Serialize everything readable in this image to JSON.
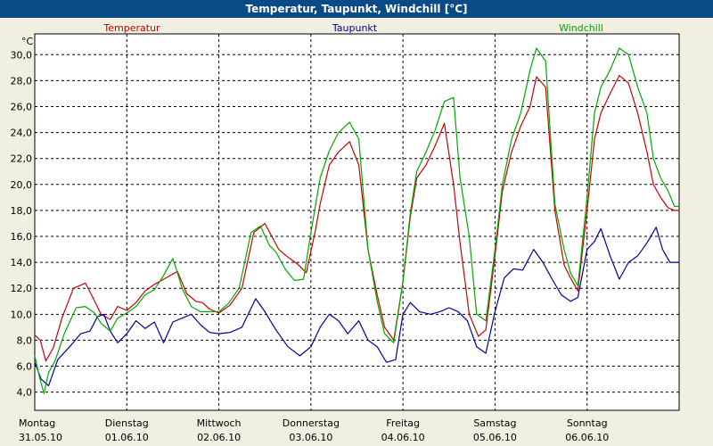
{
  "window": {
    "title": "Temperatur, Taupunkt, Windchill [°C]"
  },
  "chart_data": {
    "type": "line",
    "title": "Temperatur, Taupunkt, Windchill [°C]",
    "ylabel": "°C",
    "xlabel": "",
    "ylim": [
      2.6,
      31.6
    ],
    "y_ticks": [
      "4,0",
      "6,0",
      "8,0",
      "10,0",
      "12,0",
      "14,0",
      "16,0",
      "18,0",
      "20,0",
      "22,0",
      "24,0",
      "26,0",
      "28,0",
      "30,0"
    ],
    "y_tick_values": [
      4,
      6,
      8,
      10,
      12,
      14,
      16,
      18,
      20,
      22,
      24,
      26,
      28,
      30
    ],
    "grid": true,
    "legend": [
      "Temperatur",
      "Taupunkt",
      "Windchill"
    ],
    "categories": [
      {
        "day": "Montag",
        "date": "31.05.10"
      },
      {
        "day": "Dienstag",
        "date": "01.06.10"
      },
      {
        "day": "Mittwoch",
        "date": "02.06.10"
      },
      {
        "day": "Donnerstag",
        "date": "03.06.10"
      },
      {
        "day": "Freitag",
        "date": "04.06.10"
      },
      {
        "day": "Samstag",
        "date": "05.06.10"
      },
      {
        "day": "Sonntag",
        "date": "06.06.10"
      }
    ],
    "x_unit": "days since 31.05.10 00:00",
    "xlim": [
      0,
      7
    ],
    "series": [
      {
        "name": "Temperatur",
        "color": "#cc0000",
        "x": [
          0,
          0.06,
          0.12,
          0.2,
          0.3,
          0.42,
          0.55,
          0.63,
          0.72,
          0.82,
          0.9,
          1.0,
          1.1,
          1.2,
          1.3,
          1.4,
          1.55,
          1.65,
          1.75,
          1.82,
          1.9,
          2.0,
          2.12,
          2.25,
          2.38,
          2.5,
          2.65,
          2.75,
          2.85,
          2.95,
          3.05,
          3.1,
          3.2,
          3.3,
          3.42,
          3.52,
          3.62,
          3.72,
          3.8,
          3.9,
          4.0,
          4.08,
          4.15,
          4.25,
          4.35,
          4.45,
          4.55,
          4.62,
          4.72,
          4.82,
          4.9,
          5.0,
          5.08,
          5.18,
          5.28,
          5.38,
          5.45,
          5.55,
          5.65,
          5.75,
          5.82,
          5.9,
          6.0,
          6.08,
          6.15,
          6.25,
          6.35,
          6.45,
          6.55,
          6.65,
          6.72,
          6.8,
          6.88,
          6.95,
          7.0
        ],
        "values": [
          8.4,
          8.0,
          6.4,
          7.4,
          9.8,
          12.0,
          12.4,
          11.3,
          10.0,
          9.6,
          10.6,
          10.3,
          10.9,
          11.8,
          12.3,
          12.7,
          13.3,
          11.6,
          11.0,
          10.9,
          10.4,
          10.1,
          10.7,
          12.0,
          16.3,
          17.0,
          15.0,
          14.4,
          13.9,
          13.2,
          16.5,
          18.5,
          21.5,
          22.5,
          23.3,
          21.5,
          15.0,
          11.5,
          9.0,
          8.0,
          12.5,
          17.5,
          20.5,
          21.5,
          23.0,
          24.7,
          20.0,
          15.5,
          10.0,
          8.3,
          8.8,
          14.5,
          19.5,
          22.5,
          24.5,
          26.0,
          28.3,
          27.5,
          18.0,
          13.8,
          12.8,
          11.8,
          18.0,
          23.5,
          25.5,
          27.0,
          28.4,
          27.8,
          25.5,
          22.5,
          20.0,
          19.0,
          18.2,
          18.0,
          18.0
        ]
      },
      {
        "name": "Taupunkt",
        "color": "#000099",
        "x": [
          0,
          0.07,
          0.15,
          0.25,
          0.38,
          0.5,
          0.6,
          0.68,
          0.75,
          0.82,
          0.9,
          1.0,
          1.1,
          1.2,
          1.3,
          1.4,
          1.5,
          1.6,
          1.7,
          1.8,
          1.9,
          2.0,
          2.12,
          2.25,
          2.4,
          2.5,
          2.62,
          2.75,
          2.88,
          3.0,
          3.1,
          3.2,
          3.3,
          3.4,
          3.52,
          3.62,
          3.72,
          3.82,
          3.92,
          4.0,
          4.08,
          4.18,
          4.3,
          4.4,
          4.5,
          4.6,
          4.7,
          4.8,
          4.9,
          5.0,
          5.1,
          5.2,
          5.3,
          5.42,
          5.52,
          5.62,
          5.72,
          5.82,
          5.9,
          6.0,
          6.08,
          6.15,
          6.25,
          6.35,
          6.45,
          6.55,
          6.65,
          6.75,
          6.82,
          6.9,
          7.0
        ],
        "values": [
          6.3,
          5.0,
          4.5,
          6.5,
          7.5,
          8.5,
          8.7,
          9.8,
          10.0,
          8.7,
          7.8,
          8.5,
          9.5,
          8.9,
          9.4,
          7.8,
          9.4,
          9.7,
          10.0,
          9.2,
          8.6,
          8.5,
          8.6,
          9.0,
          11.2,
          10.2,
          8.8,
          7.5,
          6.8,
          7.5,
          9.0,
          10.0,
          9.5,
          8.5,
          9.5,
          8.0,
          7.5,
          6.3,
          6.5,
          10.0,
          10.9,
          10.2,
          10.0,
          10.2,
          10.5,
          10.2,
          9.5,
          7.5,
          7.0,
          10.2,
          12.8,
          13.5,
          13.4,
          15.0,
          14.0,
          12.7,
          11.5,
          11.0,
          11.3,
          15.0,
          15.6,
          16.6,
          14.5,
          12.7,
          14.0,
          14.5,
          15.5,
          16.7,
          15.0,
          14.0,
          14.0
        ]
      },
      {
        "name": "Windchill",
        "color": "#00aa00",
        "x": [
          0,
          0.05,
          0.1,
          0.15,
          0.22,
          0.32,
          0.45,
          0.55,
          0.65,
          0.72,
          0.82,
          0.9,
          1.0,
          1.1,
          1.2,
          1.3,
          1.4,
          1.5,
          1.55,
          1.6,
          1.7,
          1.8,
          1.9,
          2.0,
          2.1,
          2.22,
          2.35,
          2.45,
          2.55,
          2.62,
          2.72,
          2.82,
          2.92,
          3.0,
          3.1,
          3.2,
          3.3,
          3.42,
          3.52,
          3.62,
          3.72,
          3.8,
          3.9,
          4.0,
          4.08,
          4.15,
          4.25,
          4.35,
          4.45,
          4.55,
          4.62,
          4.72,
          4.8,
          4.9,
          5.0,
          5.08,
          5.18,
          5.28,
          5.38,
          5.45,
          5.55,
          5.65,
          5.75,
          5.82,
          5.9,
          6.0,
          6.08,
          6.15,
          6.25,
          6.35,
          6.45,
          6.55,
          6.65,
          6.72,
          6.8,
          6.88,
          6.95,
          7.0
        ],
        "values": [
          6.8,
          5.2,
          3.9,
          5.5,
          6.4,
          8.5,
          10.5,
          10.6,
          10.1,
          9.3,
          8.7,
          9.7,
          10.1,
          10.6,
          11.5,
          11.9,
          13.0,
          14.3,
          13.2,
          12.0,
          10.6,
          10.2,
          10.2,
          10.2,
          10.8,
          12.0,
          16.3,
          16.8,
          15.3,
          14.8,
          13.5,
          12.6,
          12.7,
          16.3,
          20.5,
          22.6,
          24.0,
          24.8,
          23.5,
          15.0,
          11.0,
          8.5,
          7.8,
          12.5,
          17.8,
          21.0,
          22.5,
          24.2,
          26.4,
          26.7,
          20.5,
          16.0,
          10.0,
          9.5,
          15.0,
          20.0,
          23.5,
          25.5,
          28.8,
          30.5,
          29.5,
          18.5,
          15.0,
          13.2,
          12.2,
          19.0,
          25.5,
          27.5,
          28.8,
          30.5,
          30.0,
          27.5,
          25.5,
          22.0,
          20.5,
          19.5,
          18.3,
          18.3
        ]
      }
    ]
  }
}
